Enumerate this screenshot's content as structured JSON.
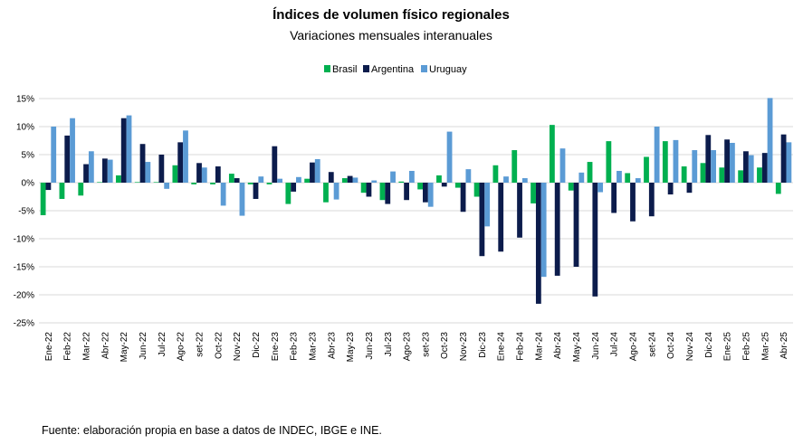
{
  "chart_data": {
    "type": "bar",
    "title": "Índices de volumen físico regionales",
    "subtitle": "Variaciones mensuales interanuales",
    "ylim": [
      -25,
      15
    ],
    "yticks": [
      "15%",
      "10%",
      "5%",
      "0%",
      "-5%",
      "-10%",
      "-15%",
      "-20%",
      "-25%"
    ],
    "ytick_values": [
      15,
      10,
      5,
      0,
      -5,
      -10,
      -15,
      -20,
      -25
    ],
    "grid": true,
    "legend_position": "top-right",
    "categories": [
      "Ene-22",
      "Feb-22",
      "Mar-22",
      "Abr-22",
      "May-22",
      "Jun-22",
      "Jul-22",
      "Ago-22",
      "set-22",
      "Oct-22",
      "Nov-22",
      "Dic-22",
      "Ene-23",
      "Feb-23",
      "Mar-23",
      "Abr-23",
      "May-23",
      "Jun-23",
      "Jul-23",
      "Ago-23",
      "set-23",
      "Oct-23",
      "Nov-23",
      "Dic-23",
      "Ene-24",
      "Feb-24",
      "Mar-24",
      "Abr-24",
      "May-24",
      "Jun-24",
      "Jul-24",
      "Ago-24",
      "set-24",
      "Oct-24",
      "Nov-24",
      "Dic-24",
      "Ene-25",
      "Feb-25",
      "Mar-25",
      "Abr-25"
    ],
    "series": [
      {
        "name": "Brasil",
        "color": "#00b050",
        "values": [
          -5.8,
          -2.9,
          -2.3,
          0.1,
          1.3,
          0.1,
          0.1,
          3.1,
          -0.3,
          -0.3,
          1.6,
          -0.3,
          -0.3,
          -3.8,
          0.7,
          -3.5,
          0.8,
          -1.8,
          -3.1,
          0.2,
          -1.2,
          1.3,
          -0.9,
          -2.5,
          3.1,
          5.8,
          -3.7,
          10.3,
          -1.4,
          3.7,
          7.4,
          1.7,
          4.6,
          7.4,
          2.9,
          3.5,
          2.7,
          2.2,
          2.7,
          -2.0
        ]
      },
      {
        "name": "Argentina",
        "color": "#0c1c4c",
        "values": [
          -1.3,
          8.4,
          3.3,
          4.3,
          11.5,
          6.9,
          5.0,
          7.2,
          3.5,
          2.9,
          0.8,
          -2.9,
          6.5,
          -1.6,
          3.6,
          1.9,
          1.2,
          -2.5,
          -3.8,
          -3.1,
          -3.5,
          -0.7,
          -5.2,
          -13.1,
          -12.3,
          -9.8,
          -21.6,
          -16.6,
          -15.0,
          -20.3,
          -5.4,
          -6.9,
          -6.0,
          -2.1,
          -1.8,
          8.5,
          7.7,
          5.6,
          5.3,
          8.6
        ]
      },
      {
        "name": "Uruguay",
        "color": "#5b9bd5",
        "values": [
          10.0,
          11.5,
          5.6,
          4.1,
          12.0,
          3.7,
          -1.1,
          9.3,
          2.7,
          -4.1,
          -5.9,
          1.1,
          0.7,
          1.0,
          4.2,
          -3.0,
          0.9,
          0.4,
          2.0,
          2.1,
          -4.3,
          9.1,
          2.4,
          -7.8,
          1.1,
          0.8,
          -16.8,
          6.1,
          1.8,
          -1.7,
          2.1,
          0.8,
          10.0,
          7.6,
          5.8,
          5.8,
          7.1,
          4.9,
          15.1,
          7.2
        ]
      }
    ]
  },
  "source_text": "Fuente: elaboración propia en base a datos de INDEC, IBGE e INE."
}
